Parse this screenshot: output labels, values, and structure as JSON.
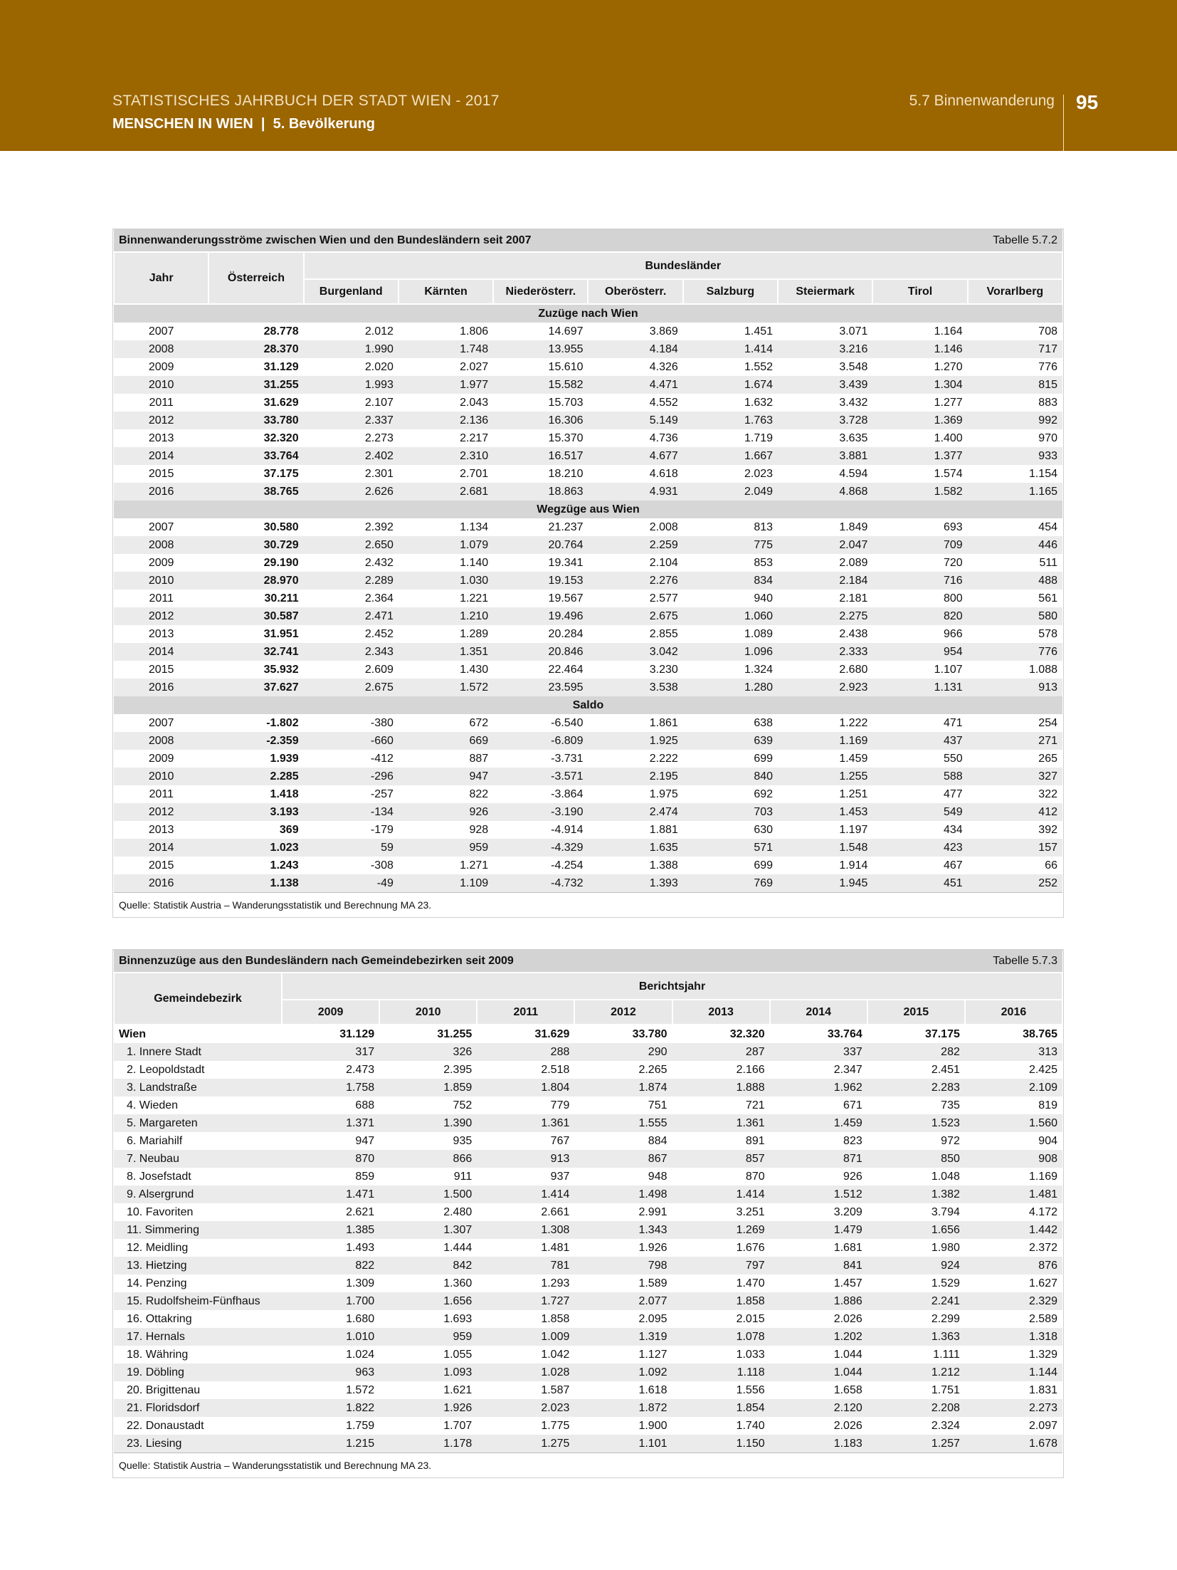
{
  "header": {
    "publication": "STATISTISCHES JAHRBUCH DER STADT WIEN - 2017",
    "chapter": "MENSCHEN IN WIEN",
    "section": "5. Bevölkerung",
    "topic": "5.7 Binnenwanderung",
    "page": "95"
  },
  "table1": {
    "title": "Binnenwanderungsströme zwischen Wien und den Bundesländern seit 2007",
    "number": "Tabelle 5.7.2",
    "headers": {
      "year": "Jahr",
      "total": "Österreich",
      "group": "Bundesländer",
      "columns": [
        "Burgenland",
        "Kärnten",
        "Niederösterr.",
        "Oberösterr.",
        "Salzburg",
        "Steiermark",
        "Tirol",
        "Vorarlberg"
      ]
    },
    "sections": [
      {
        "label": "Zuzüge nach Wien",
        "rows": [
          [
            "2007",
            "28.778",
            "2.012",
            "1.806",
            "14.697",
            "3.869",
            "1.451",
            "3.071",
            "1.164",
            "708"
          ],
          [
            "2008",
            "28.370",
            "1.990",
            "1.748",
            "13.955",
            "4.184",
            "1.414",
            "3.216",
            "1.146",
            "717"
          ],
          [
            "2009",
            "31.129",
            "2.020",
            "2.027",
            "15.610",
            "4.326",
            "1.552",
            "3.548",
            "1.270",
            "776"
          ],
          [
            "2010",
            "31.255",
            "1.993",
            "1.977",
            "15.582",
            "4.471",
            "1.674",
            "3.439",
            "1.304",
            "815"
          ],
          [
            "2011",
            "31.629",
            "2.107",
            "2.043",
            "15.703",
            "4.552",
            "1.632",
            "3.432",
            "1.277",
            "883"
          ],
          [
            "2012",
            "33.780",
            "2.337",
            "2.136",
            "16.306",
            "5.149",
            "1.763",
            "3.728",
            "1.369",
            "992"
          ],
          [
            "2013",
            "32.320",
            "2.273",
            "2.217",
            "15.370",
            "4.736",
            "1.719",
            "3.635",
            "1.400",
            "970"
          ],
          [
            "2014",
            "33.764",
            "2.402",
            "2.310",
            "16.517",
            "4.677",
            "1.667",
            "3.881",
            "1.377",
            "933"
          ],
          [
            "2015",
            "37.175",
            "2.301",
            "2.701",
            "18.210",
            "4.618",
            "2.023",
            "4.594",
            "1.574",
            "1.154"
          ],
          [
            "2016",
            "38.765",
            "2.626",
            "2.681",
            "18.863",
            "4.931",
            "2.049",
            "4.868",
            "1.582",
            "1.165"
          ]
        ]
      },
      {
        "label": "Wegzüge aus Wien",
        "rows": [
          [
            "2007",
            "30.580",
            "2.392",
            "1.134",
            "21.237",
            "2.008",
            "813",
            "1.849",
            "693",
            "454"
          ],
          [
            "2008",
            "30.729",
            "2.650",
            "1.079",
            "20.764",
            "2.259",
            "775",
            "2.047",
            "709",
            "446"
          ],
          [
            "2009",
            "29.190",
            "2.432",
            "1.140",
            "19.341",
            "2.104",
            "853",
            "2.089",
            "720",
            "511"
          ],
          [
            "2010",
            "28.970",
            "2.289",
            "1.030",
            "19.153",
            "2.276",
            "834",
            "2.184",
            "716",
            "488"
          ],
          [
            "2011",
            "30.211",
            "2.364",
            "1.221",
            "19.567",
            "2.577",
            "940",
            "2.181",
            "800",
            "561"
          ],
          [
            "2012",
            "30.587",
            "2.471",
            "1.210",
            "19.496",
            "2.675",
            "1.060",
            "2.275",
            "820",
            "580"
          ],
          [
            "2013",
            "31.951",
            "2.452",
            "1.289",
            "20.284",
            "2.855",
            "1.089",
            "2.438",
            "966",
            "578"
          ],
          [
            "2014",
            "32.741",
            "2.343",
            "1.351",
            "20.846",
            "3.042",
            "1.096",
            "2.333",
            "954",
            "776"
          ],
          [
            "2015",
            "35.932",
            "2.609",
            "1.430",
            "22.464",
            "3.230",
            "1.324",
            "2.680",
            "1.107",
            "1.088"
          ],
          [
            "2016",
            "37.627",
            "2.675",
            "1.572",
            "23.595",
            "3.538",
            "1.280",
            "2.923",
            "1.131",
            "913"
          ]
        ]
      },
      {
        "label": "Saldo",
        "rows": [
          [
            "2007",
            "-1.802",
            "-380",
            "672",
            "-6.540",
            "1.861",
            "638",
            "1.222",
            "471",
            "254"
          ],
          [
            "2008",
            "-2.359",
            "-660",
            "669",
            "-6.809",
            "1.925",
            "639",
            "1.169",
            "437",
            "271"
          ],
          [
            "2009",
            "1.939",
            "-412",
            "887",
            "-3.731",
            "2.222",
            "699",
            "1.459",
            "550",
            "265"
          ],
          [
            "2010",
            "2.285",
            "-296",
            "947",
            "-3.571",
            "2.195",
            "840",
            "1.255",
            "588",
            "327"
          ],
          [
            "2011",
            "1.418",
            "-257",
            "822",
            "-3.864",
            "1.975",
            "692",
            "1.251",
            "477",
            "322"
          ],
          [
            "2012",
            "3.193",
            "-134",
            "926",
            "-3.190",
            "2.474",
            "703",
            "1.453",
            "549",
            "412"
          ],
          [
            "2013",
            "369",
            "-179",
            "928",
            "-4.914",
            "1.881",
            "630",
            "1.197",
            "434",
            "392"
          ],
          [
            "2014",
            "1.023",
            "59",
            "959",
            "-4.329",
            "1.635",
            "571",
            "1.548",
            "423",
            "157"
          ],
          [
            "2015",
            "1.243",
            "-308",
            "1.271",
            "-4.254",
            "1.388",
            "699",
            "1.914",
            "467",
            "66"
          ],
          [
            "2016",
            "1.138",
            "-49",
            "1.109",
            "-4.732",
            "1.393",
            "769",
            "1.945",
            "451",
            "252"
          ]
        ]
      }
    ],
    "source": "Quelle: Statistik Austria – Wanderungsstatistik und Berechnung MA 23."
  },
  "table2": {
    "title": "Binnenzuzüge aus den Bundesländern nach Gemeindebezirken seit 2009",
    "number": "Tabelle 5.7.3",
    "headers": {
      "district": "Gemeindebezirk",
      "group": "Berichtsjahr",
      "columns": [
        "2009",
        "2010",
        "2011",
        "2012",
        "2013",
        "2014",
        "2015",
        "2016"
      ]
    },
    "rows": [
      [
        "Wien",
        "31.129",
        "31.255",
        "31.629",
        "33.780",
        "32.320",
        "33.764",
        "37.175",
        "38.765"
      ],
      [
        "1. Innere Stadt",
        "317",
        "326",
        "288",
        "290",
        "287",
        "337",
        "282",
        "313"
      ],
      [
        "2. Leopoldstadt",
        "2.473",
        "2.395",
        "2.518",
        "2.265",
        "2.166",
        "2.347",
        "2.451",
        "2.425"
      ],
      [
        "3. Landstraße",
        "1.758",
        "1.859",
        "1.804",
        "1.874",
        "1.888",
        "1.962",
        "2.283",
        "2.109"
      ],
      [
        "4. Wieden",
        "688",
        "752",
        "779",
        "751",
        "721",
        "671",
        "735",
        "819"
      ],
      [
        "5. Margareten",
        "1.371",
        "1.390",
        "1.361",
        "1.555",
        "1.361",
        "1.459",
        "1.523",
        "1.560"
      ],
      [
        "6. Mariahilf",
        "947",
        "935",
        "767",
        "884",
        "891",
        "823",
        "972",
        "904"
      ],
      [
        "7. Neubau",
        "870",
        "866",
        "913",
        "867",
        "857",
        "871",
        "850",
        "908"
      ],
      [
        "8. Josefstadt",
        "859",
        "911",
        "937",
        "948",
        "870",
        "926",
        "1.048",
        "1.169"
      ],
      [
        "9. Alsergrund",
        "1.471",
        "1.500",
        "1.414",
        "1.498",
        "1.414",
        "1.512",
        "1.382",
        "1.481"
      ],
      [
        "10. Favoriten",
        "2.621",
        "2.480",
        "2.661",
        "2.991",
        "3.251",
        "3.209",
        "3.794",
        "4.172"
      ],
      [
        "11. Simmering",
        "1.385",
        "1.307",
        "1.308",
        "1.343",
        "1.269",
        "1.479",
        "1.656",
        "1.442"
      ],
      [
        "12. Meidling",
        "1.493",
        "1.444",
        "1.481",
        "1.926",
        "1.676",
        "1.681",
        "1.980",
        "2.372"
      ],
      [
        "13. Hietzing",
        "822",
        "842",
        "781",
        "798",
        "797",
        "841",
        "924",
        "876"
      ],
      [
        "14. Penzing",
        "1.309",
        "1.360",
        "1.293",
        "1.589",
        "1.470",
        "1.457",
        "1.529",
        "1.627"
      ],
      [
        "15. Rudolfsheim-Fünfhaus",
        "1.700",
        "1.656",
        "1.727",
        "2.077",
        "1.858",
        "1.886",
        "2.241",
        "2.329"
      ],
      [
        "16. Ottakring",
        "1.680",
        "1.693",
        "1.858",
        "2.095",
        "2.015",
        "2.026",
        "2.299",
        "2.589"
      ],
      [
        "17. Hernals",
        "1.010",
        "959",
        "1.009",
        "1.319",
        "1.078",
        "1.202",
        "1.363",
        "1.318"
      ],
      [
        "18. Währing",
        "1.024",
        "1.055",
        "1.042",
        "1.127",
        "1.033",
        "1.044",
        "1.111",
        "1.329"
      ],
      [
        "19. Döbling",
        "963",
        "1.093",
        "1.028",
        "1.092",
        "1.118",
        "1.044",
        "1.212",
        "1.144"
      ],
      [
        "20. Brigittenau",
        "1.572",
        "1.621",
        "1.587",
        "1.618",
        "1.556",
        "1.658",
        "1.751",
        "1.831"
      ],
      [
        "21. Floridsdorf",
        "1.822",
        "1.926",
        "2.023",
        "1.872",
        "1.854",
        "2.120",
        "2.208",
        "2.273"
      ],
      [
        "22. Donaustadt",
        "1.759",
        "1.707",
        "1.775",
        "1.900",
        "1.740",
        "2.026",
        "2.324",
        "2.097"
      ],
      [
        "23. Liesing",
        "1.215",
        "1.178",
        "1.275",
        "1.101",
        "1.150",
        "1.183",
        "1.257",
        "1.678"
      ]
    ],
    "source": "Quelle: Statistik Austria – Wanderungsstatistik und Berechnung MA 23."
  }
}
